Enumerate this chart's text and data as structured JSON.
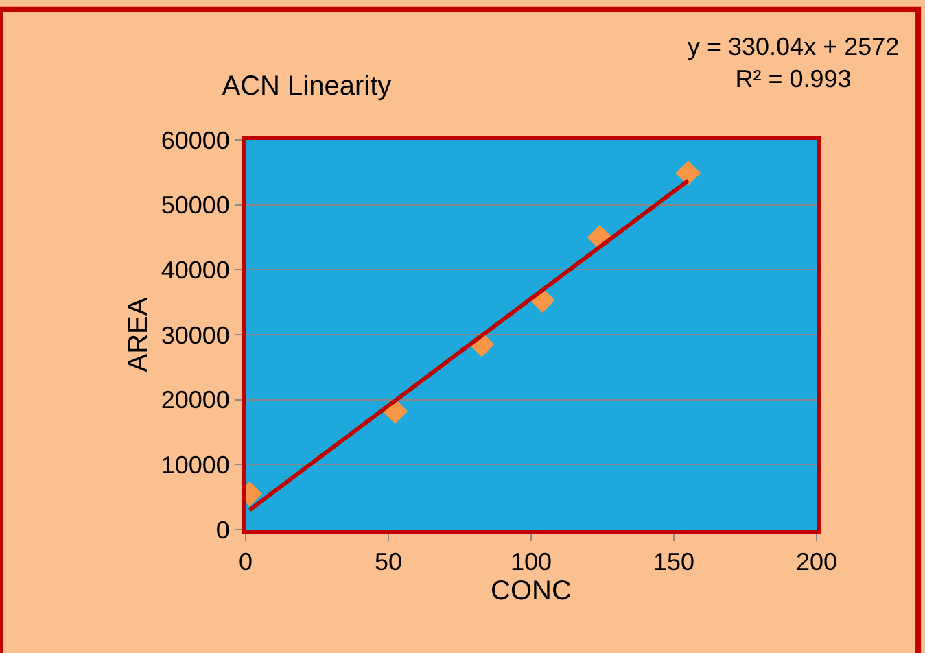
{
  "chart_data": {
    "type": "scatter",
    "title": "ACN Linearity",
    "xlabel": "CONC",
    "ylabel": "AREA",
    "x": [
      1.4,
      52.4,
      82.7,
      104,
      124,
      155
    ],
    "series": [
      {
        "color": "#f79646",
        "values": [
          5500,
          18200,
          28500,
          35300,
          45000,
          54900
        ],
        "marker": "diamond"
      },
      {
        "type": "line",
        "color": "#c00000",
        "x": [
          1.4,
          155
        ],
        "values": [
          3034,
          53728
        ],
        "marker": "none",
        "line_style": "solid"
      }
    ],
    "xlim": [
      0,
      200
    ],
    "xticks": [
      0,
      50,
      100,
      150,
      200
    ],
    "ylim": [
      0,
      60000
    ],
    "yticks": [
      0,
      10000,
      20000,
      30000,
      40000,
      50000,
      60000
    ],
    "grid": "y",
    "legend": false,
    "annotations": [
      "y = 330.04x + 2572\nR² = 0.993"
    ]
  }
}
